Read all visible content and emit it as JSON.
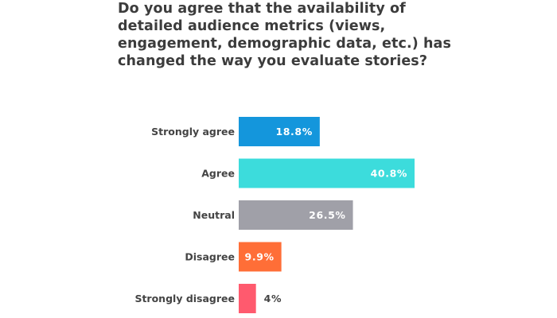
{
  "chart_data": {
    "type": "bar",
    "orientation": "horizontal",
    "title": "Do you agree that the availability of detailed audience metrics (views, engagement, demographic data, etc.) has changed the way you evaluate stories?",
    "categories": [
      "Strongly agree",
      "Agree",
      "Neutral",
      "Disagree",
      "Strongly disagree"
    ],
    "values": [
      18.8,
      40.8,
      26.5,
      9.9,
      4
    ],
    "value_labels": [
      "18.8%",
      "40.8%",
      "26.5%",
      "9.9%",
      "4%"
    ],
    "colors": [
      "#1496dc",
      "#3cdcdc",
      "#a0a0a8",
      "#ff6e37",
      "#ff5a6e"
    ],
    "xlim": [
      0,
      40.8
    ],
    "grid": false,
    "legend": "none"
  }
}
